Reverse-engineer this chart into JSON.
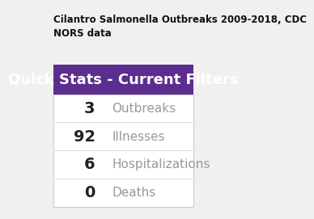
{
  "title": "Cilantro Salmonella Outbreaks 2009-2018, CDC\nNORS data",
  "header": "Quick Stats - Current Filters",
  "header_bg": "#5b2d8e",
  "header_text_color": "#ffffff",
  "row_line_color": "#dddddd",
  "rows": [
    {
      "value": "3",
      "label": "Outbreaks"
    },
    {
      "value": "92",
      "label": "Illnesses"
    },
    {
      "value": "6",
      "label": "Hospitalizations"
    },
    {
      "value": "0",
      "label": "Deaths"
    }
  ],
  "value_color": "#222222",
  "label_color": "#999999",
  "title_fontsize": 8.5,
  "header_fontsize": 13,
  "value_fontsize": 14,
  "label_fontsize": 11,
  "fig_bg": "#f0f0f0"
}
